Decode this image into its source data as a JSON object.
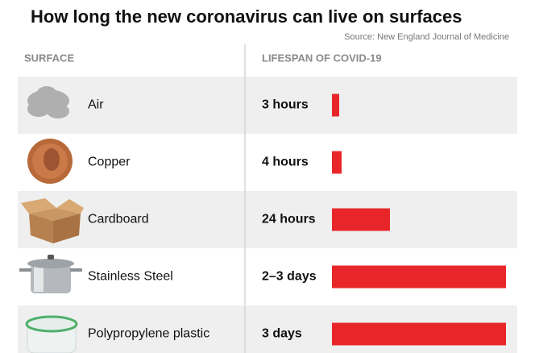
{
  "chart_data": {
    "type": "bar",
    "title": "How long the new coronavirus can live on surfaces",
    "source": "Source: New England Journal of Medicine",
    "category_header": "SURFACE",
    "value_header": "LIFESPAN OF COVID-19",
    "categories": [
      "Air",
      "Copper",
      "Cardboard",
      "Stainless Steel",
      "Polypropylene plastic"
    ],
    "values": [
      3,
      4,
      24,
      72,
      72
    ],
    "value_labels": [
      "3 hours",
      "4 hours",
      "24 hours",
      "2–3 days",
      "3 days"
    ],
    "color": "#e8262a"
  }
}
